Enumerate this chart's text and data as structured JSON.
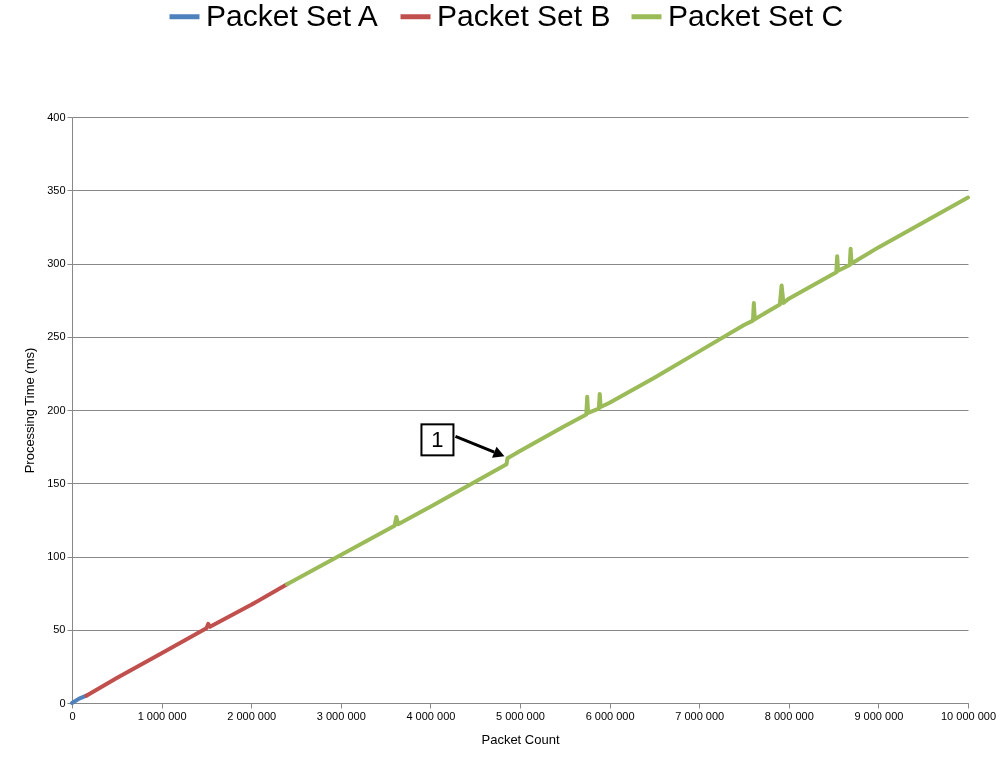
{
  "chart_data": {
    "type": "line",
    "xlabel": "Packet Count",
    "ylabel": "Processing Time (ms)",
    "xlim": [
      0,
      10000000
    ],
    "xticks": [
      0,
      {
        "value": 1000000,
        "label": "1 000 000"
      },
      {
        "value": 2000000,
        "label": "2 000 000"
      },
      {
        "value": 3000000,
        "label": "3 000 000"
      },
      {
        "value": 4000000,
        "label": "4 000 000"
      },
      {
        "value": 5000000,
        "label": "5 000 000"
      },
      {
        "value": 6000000,
        "label": "6 000 000"
      },
      {
        "value": 7000000,
        "label": "7 000 000"
      },
      {
        "value": 8000000,
        "label": "8 000 000"
      },
      {
        "value": 9000000,
        "label": "9 000 000"
      },
      {
        "value": 10000000,
        "label": "10 000 000"
      }
    ],
    "ylim": [
      0,
      400
    ],
    "yticks": [
      0,
      50,
      100,
      150,
      200,
      250,
      300,
      350,
      400
    ],
    "grid": "y",
    "legend": "top",
    "line_style": "solid",
    "annotations": [
      {
        "text": "1",
        "x": 4860000,
        "y": 167
      }
    ],
    "series": [
      {
        "name": "Packet Set A",
        "color": "#4f81bd",
        "x": [
          0,
          80000,
          160000
        ],
        "values": [
          0,
          3,
          5
        ]
      },
      {
        "name": "Packet Set B",
        "color": "#c0504d",
        "x": [
          160000,
          500000,
          1000000,
          1500000,
          1520000,
          1540000,
          2000000,
          2400000
        ],
        "values": [
          5,
          17,
          34,
          51,
          54,
          52,
          67,
          81
        ]
      },
      {
        "name": "Packet Set C",
        "color": "#9bbb59",
        "x": [
          2400000,
          3000000,
          3600000,
          3620000,
          3640000,
          4000000,
          4500000,
          4850000,
          4860000,
          5000000,
          5500000,
          5740000,
          5750000,
          5760000,
          5880000,
          5890000,
          5900000,
          6000000,
          6500000,
          7000000,
          7500000,
          7600000,
          7610000,
          7620000,
          7900000,
          7920000,
          7940000,
          8000000,
          8530000,
          8540000,
          8550000,
          8680000,
          8690000,
          8700000,
          9000000,
          9500000,
          10000000
        ],
        "values": [
          81,
          101,
          121,
          127,
          122,
          134,
          151,
          163,
          167,
          172,
          189,
          197,
          209,
          198,
          201,
          211,
          202,
          205,
          222,
          240,
          258,
          261,
          273,
          262,
          272,
          285,
          273,
          276,
          294,
          305,
          295,
          299,
          310,
          300,
          311,
          328,
          345
        ]
      }
    ]
  }
}
